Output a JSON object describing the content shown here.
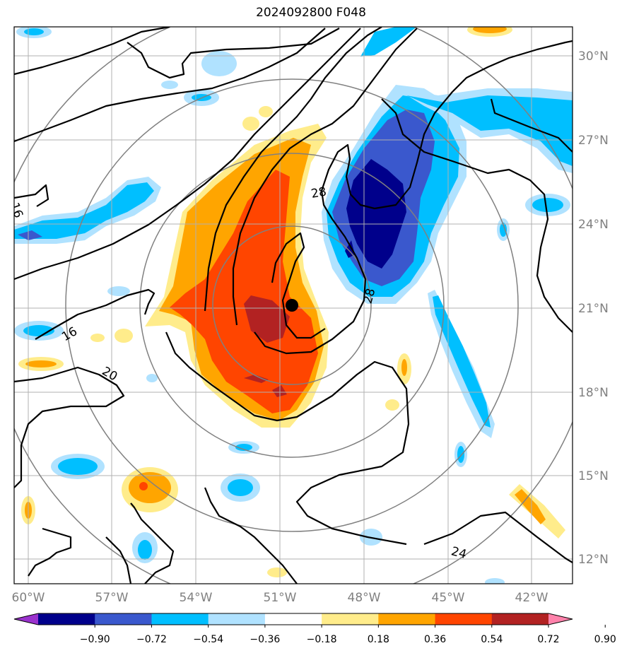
{
  "title": "2024092800 F048",
  "lon_labels": [
    "60°W",
    "57°W",
    "54°W",
    "51°W",
    "48°W",
    "45°W",
    "42°W"
  ],
  "lat_labels": [
    "30°N",
    "27°N",
    "24°N",
    "21°N",
    "18°N",
    "15°N",
    "12°N"
  ],
  "contour_labels": [
    "16",
    "16",
    "20",
    "24",
    "28",
    "28"
  ],
  "colorbar": {
    "ticks": [
      "−0.90",
      "−0.72",
      "−0.54",
      "−0.36",
      "−0.18",
      "0.18",
      "0.36",
      "0.54",
      "0.72",
      "0.90"
    ],
    "colors": [
      "#9a32cd",
      "#00008b",
      "#3a58cd",
      "#00bfff",
      "#b0e2ff",
      "#ffffff",
      "#ffec8b",
      "#ffa500",
      "#ff4500",
      "#b22222",
      "#ff82ab"
    ]
  },
  "colors": {
    "axis_label": "#808080",
    "grid": "#b0b0b0",
    "range_rings": "#808080",
    "contours": "#000000",
    "storm_center": "#000000"
  }
}
